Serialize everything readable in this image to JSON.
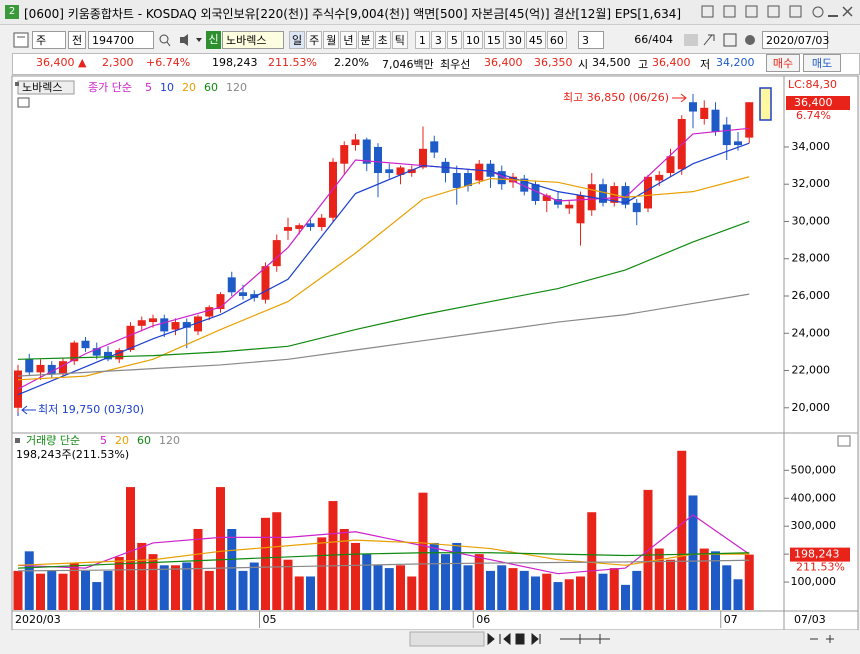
{
  "window": {
    "icon": "2",
    "title": "[0600] 키움종합차트 - KOSDAQ 외국인보유[220(천)] 주식수[9,004(천)] 액면[500] 자본금[45(억)] 결산[12월] EPS[1,634]"
  },
  "toolbar": {
    "period": "주",
    "adjust": "전",
    "code": "194700",
    "badge": "신",
    "name": "노바렉스",
    "intervals": [
      "일",
      "주",
      "월",
      "년",
      "분",
      "초",
      "틱",
      "1",
      "3",
      "5",
      "10",
      "15",
      "30",
      "45",
      "60"
    ],
    "multiplier": "3",
    "count": "66/404",
    "date": "2020/07/03"
  },
  "quote": {
    "price": "36,400 ▲",
    "change": "2,300",
    "rate": "+6.74%",
    "volume": "198,243",
    "volume_rate": "211.53%",
    "turnover": "2.20%",
    "amount": "7,046백만",
    "best_label": "최우선",
    "ask": "36,400",
    "bid": "36,350",
    "open_label": "시",
    "open": "34,500",
    "high_label": "고",
    "high": "36,400",
    "low_label": "저",
    "low": "34,200",
    "buy": "매수",
    "sell": "매도"
  },
  "chart_data": [
    {
      "type": "candlestick",
      "name": "노바렉스",
      "legend_label": "종가 단순",
      "up_color": "#e8231a",
      "down_color": "#1e5bc6",
      "open": [
        20000,
        22600,
        21900,
        22300,
        21800,
        22500,
        23600,
        23200,
        23000,
        22600,
        23100,
        24400,
        24600,
        24800,
        24200,
        24600,
        24100,
        24900,
        25300,
        27000,
        26200,
        26100,
        25800,
        27600,
        29500,
        29600,
        29900,
        29700,
        30200,
        33100,
        34100,
        34400,
        34000,
        32800,
        32500,
        32600,
        32900,
        34300,
        33200,
        32600,
        32600,
        32200,
        33100,
        32700,
        32100,
        32300,
        32000,
        31100,
        31200,
        30700,
        29900,
        30600,
        32000,
        31000,
        31900,
        31000,
        30700,
        32200,
        32600,
        32800,
        36400,
        35500,
        36000,
        35200,
        34300,
        34500
      ],
      "high": [
        22300,
        22900,
        22600,
        22500,
        22700,
        23600,
        23800,
        23500,
        23300,
        23200,
        24600,
        24900,
        25000,
        25000,
        24800,
        24800,
        25000,
        25500,
        26200,
        27300,
        26600,
        26300,
        27800,
        29300,
        30200,
        29900,
        30100,
        30400,
        33400,
        34300,
        34700,
        34500,
        34200,
        33100,
        33000,
        33000,
        35100,
        34600,
        33400,
        33000,
        32800,
        33300,
        33300,
        33000,
        32600,
        32500,
        32200,
        31500,
        31600,
        31100,
        31600,
        32600,
        32300,
        32100,
        32100,
        31200,
        32500,
        32700,
        33900,
        35700,
        36850,
        36500,
        36400,
        35600,
        34800,
        36400
      ],
      "low": [
        19750,
        21700,
        21500,
        21600,
        21700,
        22300,
        23000,
        22600,
        22500,
        22400,
        23000,
        24100,
        24300,
        23800,
        23900,
        23200,
        23900,
        24700,
        25100,
        26000,
        25800,
        25700,
        25600,
        27300,
        29000,
        29300,
        29500,
        29500,
        30000,
        32500,
        33800,
        32700,
        31300,
        32300,
        32000,
        32400,
        32800,
        33400,
        32100,
        30900,
        31600,
        32000,
        31800,
        31700,
        31800,
        31400,
        30900,
        30500,
        30700,
        30400,
        28700,
        30300,
        30800,
        30800,
        30700,
        29800,
        30500,
        31900,
        32400,
        32500,
        35000,
        35200,
        34600,
        33300,
        33800,
        34200
      ],
      "close": [
        22000,
        21900,
        22300,
        21800,
        22500,
        23500,
        23200,
        22800,
        22600,
        23100,
        24400,
        24700,
        24800,
        24100,
        24600,
        24300,
        24900,
        25400,
        26100,
        26200,
        26000,
        25900,
        27600,
        29000,
        29700,
        29800,
        29700,
        30200,
        33200,
        34100,
        34400,
        33100,
        32600,
        32600,
        32900,
        32800,
        33900,
        33700,
        32600,
        31800,
        31900,
        33100,
        32400,
        32000,
        32400,
        31600,
        31100,
        31400,
        30900,
        30900,
        31400,
        32000,
        31000,
        31900,
        30900,
        30500,
        32400,
        32500,
        33500,
        35500,
        35900,
        36100,
        34800,
        34100,
        34100,
        36400
      ],
      "ylim": [
        18700,
        37700
      ],
      "yticks": [
        {
          "value": 20000,
          "label": "20,000"
        },
        {
          "value": 22000,
          "label": "22,000"
        },
        {
          "value": 24000,
          "label": "24,000"
        },
        {
          "value": 26000,
          "label": "26,000"
        },
        {
          "value": 28000,
          "label": "28,000"
        },
        {
          "value": 30000,
          "label": "30,000"
        },
        {
          "value": 32000,
          "label": "32,000"
        },
        {
          "value": 34000,
          "label": "34,000"
        }
      ],
      "ma": [
        {
          "name": "5",
          "color": "#cc22cc",
          "x": [
            0,
            6,
            12,
            18,
            24,
            30,
            36,
            42,
            48,
            54,
            60,
            65
          ],
          "values": [
            21000,
            22900,
            24400,
            25400,
            28600,
            33300,
            33000,
            32700,
            31100,
            31300,
            34700,
            35000
          ]
        },
        {
          "name": "10",
          "color": "#1a3fd0",
          "x": [
            0,
            6,
            12,
            18,
            24,
            30,
            36,
            42,
            48,
            54,
            60,
            65
          ],
          "values": [
            20700,
            22200,
            23700,
            25000,
            26900,
            31500,
            33000,
            32700,
            31600,
            31000,
            33100,
            34200
          ]
        },
        {
          "name": "20",
          "color": "#e8a000",
          "x": [
            0,
            6,
            12,
            18,
            24,
            30,
            36,
            42,
            48,
            54,
            60,
            65
          ],
          "values": [
            21500,
            21700,
            22600,
            24200,
            25700,
            28300,
            31200,
            32300,
            32100,
            31300,
            31600,
            32400
          ]
        },
        {
          "name": "60",
          "color": "#108a10",
          "x": [
            0,
            6,
            12,
            18,
            24,
            30,
            36,
            42,
            48,
            54,
            60,
            65
          ],
          "values": [
            22600,
            22700,
            22800,
            23000,
            23300,
            24200,
            25000,
            25700,
            26400,
            27400,
            28900,
            30000
          ]
        },
        {
          "name": "120",
          "color": "#888888",
          "x": [
            0,
            6,
            12,
            18,
            24,
            30,
            36,
            42,
            48,
            54,
            60,
            65
          ],
          "values": [
            21700,
            21900,
            22100,
            22300,
            22600,
            23100,
            23600,
            24100,
            24600,
            25000,
            25600,
            26100
          ]
        }
      ],
      "high_note": "최고 36,850 (06/26)",
      "low_note": "최저 19,750 (03/30)",
      "last_label": "36,400",
      "last_rate": "6.74%",
      "corner_label": "LC:84,30"
    },
    {
      "type": "bar",
      "legend_label": "거래량 단순",
      "summary": "198,243주(211.53%)",
      "values": [
        140000,
        210000,
        130000,
        140000,
        130000,
        170000,
        140000,
        100000,
        140000,
        190000,
        440000,
        240000,
        200000,
        160000,
        160000,
        170000,
        290000,
        140000,
        440000,
        290000,
        140000,
        170000,
        330000,
        350000,
        180000,
        120000,
        120000,
        260000,
        390000,
        290000,
        240000,
        200000,
        160000,
        150000,
        160000,
        120000,
        420000,
        240000,
        200000,
        240000,
        160000,
        200000,
        140000,
        160000,
        150000,
        140000,
        120000,
        130000,
        100000,
        110000,
        120000,
        350000,
        130000,
        150000,
        90000,
        140000,
        430000,
        220000,
        180000,
        570000,
        410000,
        220000,
        210000,
        160000,
        110000,
        198243
      ],
      "ylim": [
        0,
        630000
      ],
      "yticks": [
        {
          "value": 100000,
          "label": "100,000"
        },
        {
          "value": 200000,
          "label": "200,000"
        },
        {
          "value": 300000,
          "label": "300,000"
        },
        {
          "value": 400000,
          "label": "400,000"
        },
        {
          "value": 500000,
          "label": "500,000"
        }
      ],
      "ma": [
        {
          "name": "5",
          "color": "#cc22cc",
          "x": [
            0,
            6,
            12,
            18,
            24,
            30,
            36,
            42,
            48,
            54,
            60,
            65
          ],
          "values": [
            160000,
            150000,
            240000,
            260000,
            260000,
            280000,
            230000,
            180000,
            130000,
            150000,
            340000,
            200000
          ]
        },
        {
          "name": "20",
          "color": "#e8a000",
          "x": [
            0,
            6,
            12,
            18,
            24,
            30,
            36,
            42,
            48,
            54,
            60,
            65
          ],
          "values": [
            160000,
            170000,
            180000,
            210000,
            230000,
            250000,
            240000,
            220000,
            180000,
            160000,
            200000,
            200000
          ]
        },
        {
          "name": "60",
          "color": "#108a10",
          "x": [
            0,
            6,
            12,
            18,
            24,
            30,
            36,
            42,
            48,
            54,
            60,
            65
          ],
          "values": [
            150000,
            160000,
            170000,
            180000,
            190000,
            200000,
            205000,
            205000,
            200000,
            195000,
            200000,
            205000
          ]
        },
        {
          "name": "120",
          "color": "#888888",
          "x": [
            0,
            6,
            12,
            18,
            24,
            30,
            36,
            42,
            48,
            54,
            60,
            65
          ],
          "values": [
            140000,
            142000,
            145000,
            150000,
            155000,
            160000,
            165000,
            168000,
            170000,
            172000,
            175000,
            178000
          ]
        }
      ],
      "last_label": "198,243",
      "last_rate": "211.53%",
      "xticks": [
        {
          "value": 0,
          "label": "2020/03"
        },
        {
          "value": 22,
          "label": "05"
        },
        {
          "value": 41,
          "label": "06"
        },
        {
          "value": 63,
          "label": "07"
        }
      ],
      "last_date": "07/03"
    }
  ]
}
